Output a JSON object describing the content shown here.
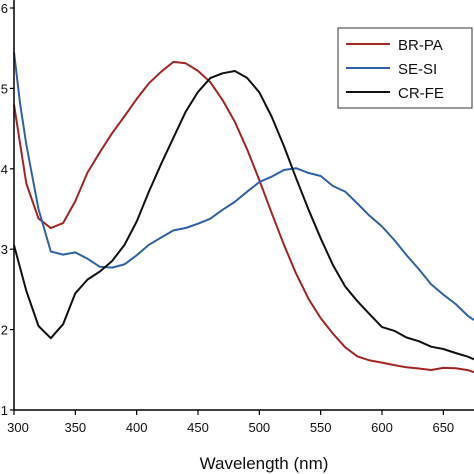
{
  "chart_data": {
    "type": "line",
    "title": "",
    "xlabel": "Wavelength (nm)",
    "ylabel": "",
    "xlim": [
      300,
      675
    ],
    "ylim": [
      0.1,
      0.6
    ],
    "x_ticks": [
      300,
      350,
      400,
      450,
      500,
      550,
      600,
      650
    ],
    "y_tick_labels": [
      {
        "value": 0.6,
        "label": "6"
      },
      {
        "value": 0.5,
        "label": "5"
      },
      {
        "value": 0.4,
        "label": "4"
      },
      {
        "value": 0.3,
        "label": "3"
      },
      {
        "value": 0.2,
        "label": "2"
      },
      {
        "value": 0.1,
        "label": "1"
      }
    ],
    "grid": false,
    "legend_position": "top-right",
    "series": [
      {
        "name": "BR-PA",
        "color": "#a52424",
        "x": [
          300,
          310,
          320,
          330,
          340,
          350,
          360,
          370,
          380,
          390,
          400,
          410,
          420,
          430,
          440,
          450,
          460,
          470,
          480,
          490,
          500,
          510,
          520,
          530,
          540,
          550,
          560,
          570,
          580,
          590,
          600,
          610,
          620,
          630,
          640,
          650,
          660,
          670,
          675
        ],
        "y": [
          0.48,
          0.38,
          0.34,
          0.326,
          0.333,
          0.36,
          0.395,
          0.422,
          0.445,
          0.465,
          0.485,
          0.505,
          0.522,
          0.531,
          0.53,
          0.522,
          0.506,
          0.486,
          0.458,
          0.425,
          0.385,
          0.345,
          0.305,
          0.27,
          0.24,
          0.215,
          0.195,
          0.18,
          0.168,
          0.162,
          0.157,
          0.155,
          0.154,
          0.152,
          0.151,
          0.152,
          0.15,
          0.148,
          0.147
        ]
      },
      {
        "name": "SE-SI",
        "color": "#2f62a8",
        "x": [
          300,
          305,
          310,
          320,
          330,
          340,
          350,
          360,
          370,
          380,
          390,
          400,
          410,
          420,
          430,
          440,
          450,
          460,
          470,
          480,
          490,
          500,
          510,
          520,
          530,
          540,
          550,
          560,
          570,
          580,
          590,
          600,
          610,
          620,
          630,
          640,
          650,
          660,
          670,
          675
        ],
        "y": [
          0.545,
          0.48,
          0.43,
          0.35,
          0.298,
          0.292,
          0.295,
          0.288,
          0.278,
          0.277,
          0.283,
          0.292,
          0.305,
          0.315,
          0.322,
          0.327,
          0.332,
          0.339,
          0.347,
          0.358,
          0.37,
          0.382,
          0.392,
          0.398,
          0.399,
          0.396,
          0.39,
          0.38,
          0.37,
          0.358,
          0.342,
          0.328,
          0.312,
          0.293,
          0.275,
          0.258,
          0.243,
          0.23,
          0.218,
          0.212
        ]
      },
      {
        "name": "CR-FE",
        "color": "#111111",
        "x": [
          300,
          310,
          320,
          330,
          340,
          350,
          360,
          370,
          380,
          390,
          400,
          410,
          420,
          430,
          440,
          450,
          460,
          470,
          480,
          490,
          500,
          510,
          520,
          530,
          540,
          550,
          560,
          570,
          580,
          590,
          600,
          610,
          620,
          630,
          640,
          650,
          660,
          670,
          675
        ],
        "y": [
          0.305,
          0.25,
          0.205,
          0.19,
          0.205,
          0.245,
          0.262,
          0.272,
          0.285,
          0.305,
          0.335,
          0.37,
          0.405,
          0.44,
          0.47,
          0.495,
          0.511,
          0.519,
          0.52,
          0.513,
          0.495,
          0.465,
          0.43,
          0.39,
          0.35,
          0.312,
          0.28,
          0.255,
          0.235,
          0.218,
          0.205,
          0.198,
          0.192,
          0.186,
          0.18,
          0.175,
          0.17,
          0.165,
          0.163
        ]
      }
    ]
  }
}
